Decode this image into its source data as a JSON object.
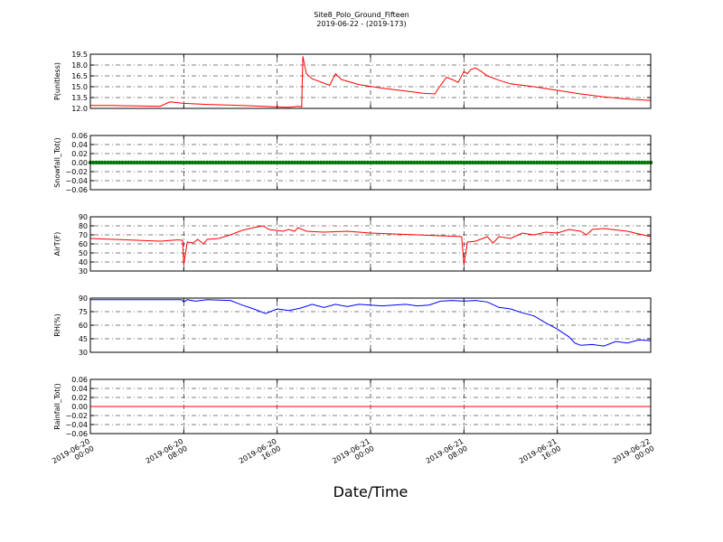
{
  "chart_data": {
    "type": "line",
    "title": "Site8_Polo_Ground_Fifteen",
    "subtitle": "2019-06-22 - (2019-173)",
    "xlabel": "Date/Time",
    "x_ticks": [
      {
        "line1": "2019-06-20",
        "line2": "00:00",
        "hour": 0
      },
      {
        "line1": "2019-06-20",
        "line2": "08:00",
        "hour": 8
      },
      {
        "line1": "2019-06-20",
        "line2": "16:00",
        "hour": 16
      },
      {
        "line1": "2019-06-21",
        "line2": "00:00",
        "hour": 24
      },
      {
        "line1": "2019-06-21",
        "line2": "08:00",
        "hour": 32
      },
      {
        "line1": "2019-06-21",
        "line2": "16:00",
        "hour": 40
      },
      {
        "line1": "2019-06-22",
        "line2": "00:00",
        "hour": 48
      }
    ],
    "xlim_hours": [
      0,
      48
    ],
    "grid": true,
    "panels": [
      {
        "ylabel": "P(unitless)",
        "ylim": [
          12.0,
          19.5
        ],
        "yticks": [
          "12.0",
          "13.5",
          "15.0",
          "16.5",
          "18.0",
          "19.5"
        ],
        "series": [
          {
            "color": "#ff0000",
            "points": [
              [
                0,
                12.4
              ],
              [
                2,
                12.4
              ],
              [
                4,
                12.35
              ],
              [
                6,
                12.3
              ],
              [
                6.8,
                12.9
              ],
              [
                8,
                12.7
              ],
              [
                10,
                12.55
              ],
              [
                12,
                12.45
              ],
              [
                14,
                12.35
              ],
              [
                16,
                12.2
              ],
              [
                17,
                12.15
              ],
              [
                17.8,
                12.3
              ],
              [
                18.1,
                12.2
              ],
              [
                18.2,
                19.2
              ],
              [
                18.5,
                16.8
              ],
              [
                19,
                16.1
              ],
              [
                20,
                15.5
              ],
              [
                20.5,
                15.2
              ],
              [
                21,
                16.8
              ],
              [
                21.5,
                16.0
              ],
              [
                23,
                15.3
              ],
              [
                25,
                14.8
              ],
              [
                27,
                14.4
              ],
              [
                28.5,
                14.1
              ],
              [
                29.5,
                14.0
              ],
              [
                30,
                15.2
              ],
              [
                30.5,
                16.3
              ],
              [
                31,
                16.0
              ],
              [
                31.5,
                15.6
              ],
              [
                32,
                17.1
              ],
              [
                32.3,
                16.8
              ],
              [
                32.6,
                17.4
              ],
              [
                33,
                17.6
              ],
              [
                33.5,
                17.1
              ],
              [
                34,
                16.5
              ],
              [
                35,
                15.9
              ],
              [
                36,
                15.4
              ],
              [
                38,
                15.0
              ],
              [
                40,
                14.5
              ],
              [
                42,
                14.0
              ],
              [
                44,
                13.6
              ],
              [
                46,
                13.3
              ],
              [
                48,
                13.1
              ]
            ]
          }
        ]
      },
      {
        "ylabel": "Snowfall_Tot()",
        "ylim": [
          -0.06,
          0.06
        ],
        "yticks": [
          "−0.06",
          "−0.04",
          "−0.02",
          "0.00",
          "0.02",
          "0.04",
          "0.06"
        ],
        "series": [
          {
            "color": "#007700",
            "markers": true,
            "points": [
              [
                0,
                0
              ],
              [
                48,
                0
              ]
            ]
          }
        ]
      },
      {
        "ylabel": "AirT(F)",
        "ylim": [
          30,
          90
        ],
        "yticks": [
          "30",
          "40",
          "50",
          "60",
          "70",
          "80",
          "90"
        ],
        "series": [
          {
            "color": "#ff0000",
            "points": [
              [
                0,
                66
              ],
              [
                2,
                65
              ],
              [
                4,
                64
              ],
              [
                6,
                63
              ],
              [
                7.5,
                64.5
              ],
              [
                7.9,
                64
              ],
              [
                8,
                37
              ],
              [
                8.3,
                62
              ],
              [
                8.8,
                61
              ],
              [
                9.2,
                65
              ],
              [
                9.7,
                60
              ],
              [
                10,
                65
              ],
              [
                11,
                66
              ],
              [
                12,
                70
              ],
              [
                13,
                75
              ],
              [
                14,
                78
              ],
              [
                14.8,
                80
              ],
              [
                15.3,
                76
              ],
              [
                16.5,
                74
              ],
              [
                17,
                76
              ],
              [
                17.5,
                74
              ],
              [
                17.8,
                78
              ],
              [
                18.5,
                74
              ],
              [
                20,
                73
              ],
              [
                22,
                74
              ],
              [
                24,
                72
              ],
              [
                26,
                71
              ],
              [
                28,
                70
              ],
              [
                30,
                69
              ],
              [
                31.8,
                68
              ],
              [
                32,
                37
              ],
              [
                32.3,
                62
              ],
              [
                33,
                63
              ],
              [
                34,
                68
              ],
              [
                34.5,
                61
              ],
              [
                35,
                68
              ],
              [
                36,
                66
              ],
              [
                37,
                72
              ],
              [
                38,
                70
              ],
              [
                39,
                73
              ],
              [
                40,
                72
              ],
              [
                41,
                76
              ],
              [
                42,
                74
              ],
              [
                42.5,
                70
              ],
              [
                43,
                76
              ],
              [
                44,
                77
              ],
              [
                46,
                74
              ],
              [
                48,
                68
              ]
            ]
          }
        ]
      },
      {
        "ylabel": "RH(%)",
        "ylim": [
          30,
          100
        ],
        "yticks": [
          "30",
          "45",
          "60",
          "75",
          "90"
        ],
        "series": [
          {
            "color": "#0000ff",
            "points": [
              [
                0,
                98
              ],
              [
                4,
                98
              ],
              [
                7.8,
                98
              ],
              [
                8,
                95
              ],
              [
                8.3,
                98
              ],
              [
                9,
                96
              ],
              [
                10,
                98
              ],
              [
                12,
                97
              ],
              [
                13,
                91
              ],
              [
                14,
                86
              ],
              [
                15,
                80
              ],
              [
                16,
                86
              ],
              [
                17,
                84
              ],
              [
                18,
                87
              ],
              [
                19,
                92
              ],
              [
                20,
                88
              ],
              [
                21,
                92
              ],
              [
                22,
                89
              ],
              [
                23,
                92
              ],
              [
                24,
                91
              ],
              [
                25,
                90
              ],
              [
                27,
                92
              ],
              [
                28,
                90
              ],
              [
                29,
                91
              ],
              [
                30,
                96
              ],
              [
                31,
                97
              ],
              [
                32,
                96
              ],
              [
                33,
                97
              ],
              [
                34,
                95
              ],
              [
                35,
                88
              ],
              [
                36,
                86
              ],
              [
                37,
                81
              ],
              [
                38,
                77
              ],
              [
                39,
                68
              ],
              [
                40,
                60
              ],
              [
                41,
                50
              ],
              [
                41.5,
                42
              ],
              [
                42,
                39
              ],
              [
                43,
                40
              ],
              [
                44,
                38
              ],
              [
                45,
                44
              ],
              [
                46,
                42
              ],
              [
                47,
                46
              ],
              [
                48,
                45
              ]
            ]
          }
        ]
      },
      {
        "ylabel": "Rainfall_Tot()",
        "ylim": [
          -0.06,
          0.06
        ],
        "yticks": [
          "−0.06",
          "−0.04",
          "−0.02",
          "0.00",
          "0.02",
          "0.04",
          "0.06"
        ],
        "series": [
          {
            "color": "#ff0000",
            "points": [
              [
                0,
                0
              ],
              [
                48,
                0
              ]
            ]
          }
        ]
      }
    ]
  }
}
